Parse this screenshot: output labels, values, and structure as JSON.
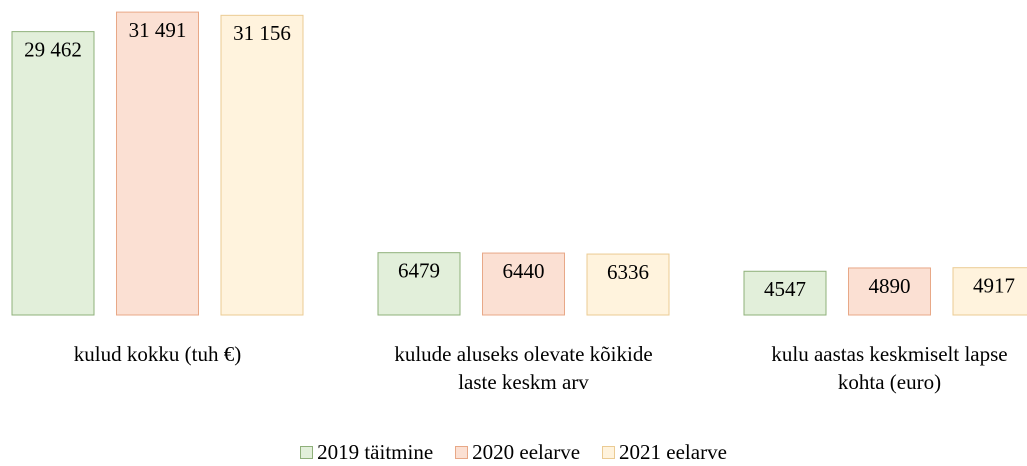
{
  "chart_data": {
    "type": "bar",
    "categories": [
      "kulud kokku (tuh €)",
      "kulude aluseks olevate kõikide laste keskm arv",
      "kulu aastas keskmiselt lapse kohta (euro)"
    ],
    "series": [
      {
        "name": "2019 täitmine",
        "color": "#e2efda",
        "values": [
          29462,
          6479,
          4547
        ],
        "value_labels": [
          "29 462",
          "6479",
          "4547"
        ]
      },
      {
        "name": "2020 eelarve",
        "color": "#fbe0d3",
        "values": [
          31491,
          6440,
          4890
        ],
        "value_labels": [
          "31 491",
          "6440",
          "4890"
        ]
      },
      {
        "name": "2021 eelarve",
        "color": "#fff3dd",
        "values": [
          31156,
          6336,
          4917
        ],
        "value_labels": [
          "31 156",
          "6336",
          "4917"
        ]
      }
    ],
    "ylim": [
      0,
      32750
    ]
  }
}
